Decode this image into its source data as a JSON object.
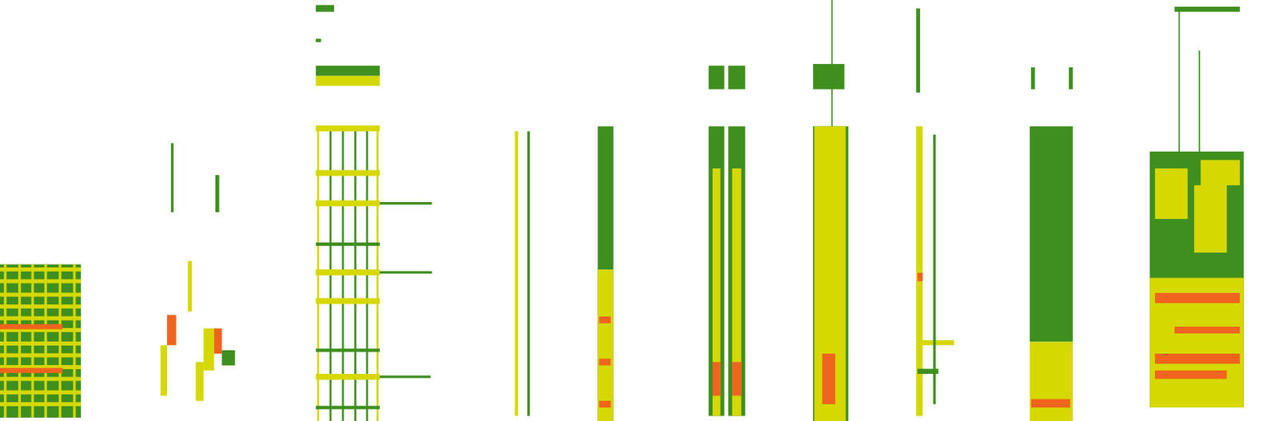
{
  "chart_data": {
    "type": "spectrogram",
    "xlim": [
      0,
      98
    ],
    "ylim": [
      0,
      25
    ],
    "tick_labels": false,
    "grid": false,
    "levels": [
      1,
      2,
      3
    ],
    "colors": [
      "#3f8f1f",
      "#d6d800",
      "#f0641e"
    ],
    "cells": [
      {
        "x": [
          0,
          6.2
        ],
        "y": [
          0.2,
          9.3
        ],
        "level": 1
      },
      {
        "x": [
          0,
          6.2
        ],
        "y": [
          8.88,
          9.12
        ],
        "level": 2
      },
      {
        "x": [
          0,
          6.2
        ],
        "y": [
          8.18,
          8.42
        ],
        "level": 2
      },
      {
        "x": [
          0,
          6.2
        ],
        "y": [
          7.38,
          7.62
        ],
        "level": 2
      },
      {
        "x": [
          0,
          6.2
        ],
        "y": [
          6.68,
          6.92
        ],
        "level": 2
      },
      {
        "x": [
          0,
          6.2
        ],
        "y": [
          5.98,
          6.22
        ],
        "level": 2
      },
      {
        "x": [
          0,
          6.2
        ],
        "y": [
          5.28,
          5.52
        ],
        "level": 2
      },
      {
        "x": [
          0,
          6.2
        ],
        "y": [
          4.48,
          4.72
        ],
        "level": 2
      },
      {
        "x": [
          0,
          6.2
        ],
        "y": [
          3.78,
          4.02
        ],
        "level": 2
      },
      {
        "x": [
          0,
          6.2
        ],
        "y": [
          3.08,
          3.32
        ],
        "level": 2
      },
      {
        "x": [
          0,
          6.2
        ],
        "y": [
          2.38,
          2.62
        ],
        "level": 2
      },
      {
        "x": [
          0,
          6.2
        ],
        "y": [
          1.58,
          1.82
        ],
        "level": 2
      },
      {
        "x": [
          0,
          6.2
        ],
        "y": [
          0.88,
          1.12
        ],
        "level": 2
      },
      {
        "x": [
          0.3,
          0.5
        ],
        "y": [
          0.2,
          9.3
        ],
        "level": 2
      },
      {
        "x": [
          1.4,
          1.6
        ],
        "y": [
          0.2,
          9.3
        ],
        "level": 2
      },
      {
        "x": [
          2.4,
          2.6
        ],
        "y": [
          0.2,
          9.3
        ],
        "level": 2
      },
      {
        "x": [
          3.4,
          3.6
        ],
        "y": [
          0.2,
          9.3
        ],
        "level": 2
      },
      {
        "x": [
          4.5,
          4.7
        ],
        "y": [
          0.2,
          9.3
        ],
        "level": 2
      },
      {
        "x": [
          5.6,
          5.8
        ],
        "y": [
          0.2,
          9.3
        ],
        "level": 2
      },
      {
        "x": [
          0,
          4.8
        ],
        "y": [
          5.45,
          5.75
        ],
        "level": 3
      },
      {
        "x": [
          0,
          4.8
        ],
        "y": [
          2.85,
          3.15
        ],
        "level": 3
      },
      {
        "x": [
          12.3,
          12.8
        ],
        "y": [
          1.5,
          4.5
        ],
        "level": 2
      },
      {
        "x": [
          12.8,
          13.5
        ],
        "y": [
          4.5,
          6.3
        ],
        "level": 3
      },
      {
        "x": [
          14.4,
          14.7
        ],
        "y": [
          6.5,
          9.5
        ],
        "level": 2
      },
      {
        "x": [
          15,
          15.6
        ],
        "y": [
          1.2,
          3.5
        ],
        "level": 2
      },
      {
        "x": [
          15.6,
          16.4
        ],
        "y": [
          3,
          5.5
        ],
        "level": 2
      },
      {
        "x": [
          16.4,
          17
        ],
        "y": [
          4,
          5.5
        ],
        "level": 3
      },
      {
        "x": [
          17,
          18
        ],
        "y": [
          3.3,
          4.2
        ],
        "level": 1
      },
      {
        "x": [
          16.5,
          16.8
        ],
        "y": [
          12.4,
          14.6
        ],
        "level": 1
      },
      {
        "x": [
          13.1,
          13.3
        ],
        "y": [
          12.4,
          16.5
        ],
        "level": 1
      },
      {
        "x": [
          24.3,
          24.45
        ],
        "y": [
          0,
          17.5
        ],
        "level": 2
      },
      {
        "x": [
          25.25,
          25.4
        ],
        "y": [
          0,
          17.5
        ],
        "level": 1
      },
      {
        "x": [
          26.2,
          26.35
        ],
        "y": [
          0,
          17.5
        ],
        "level": 1
      },
      {
        "x": [
          27.15,
          27.3
        ],
        "y": [
          0,
          17.5
        ],
        "level": 1
      },
      {
        "x": [
          28.05,
          28.2
        ],
        "y": [
          0,
          17.5
        ],
        "level": 1
      },
      {
        "x": [
          28.85,
          29.0
        ],
        "y": [
          0,
          17.5
        ],
        "level": 2
      },
      {
        "x": [
          24.2,
          29.1
        ],
        "y": [
          17.2,
          17.55
        ],
        "level": 2
      },
      {
        "x": [
          24.2,
          29.1
        ],
        "y": [
          14.55,
          14.9
        ],
        "level": 2
      },
      {
        "x": [
          24.2,
          29.1
        ],
        "y": [
          12.75,
          13.1
        ],
        "level": 2
      },
      {
        "x": [
          24.2,
          29.1
        ],
        "y": [
          10.4,
          10.6
        ],
        "level": 1
      },
      {
        "x": [
          24.2,
          29.1
        ],
        "y": [
          8.65,
          9.0
        ],
        "level": 2
      },
      {
        "x": [
          24.2,
          29.1
        ],
        "y": [
          6.95,
          7.3
        ],
        "level": 2
      },
      {
        "x": [
          24.2,
          29.1
        ],
        "y": [
          4.1,
          4.3
        ],
        "level": 1
      },
      {
        "x": [
          24.2,
          29.1
        ],
        "y": [
          2.45,
          2.8
        ],
        "level": 2
      },
      {
        "x": [
          24.2,
          29.1
        ],
        "y": [
          0.7,
          0.9
        ],
        "level": 1
      },
      {
        "x": [
          29.1,
          33.1
        ],
        "y": [
          12.85,
          13.0
        ],
        "level": 1
      },
      {
        "x": [
          29.1,
          33.1
        ],
        "y": [
          8.75,
          8.9
        ],
        "level": 1
      },
      {
        "x": [
          29.1,
          33.0
        ],
        "y": [
          2.55,
          2.7
        ],
        "level": 1
      },
      {
        "x": [
          24.2,
          29.1
        ],
        "y": [
          19.9,
          20.5
        ],
        "level": 2
      },
      {
        "x": [
          24.2,
          29.1
        ],
        "y": [
          20.5,
          21.1
        ],
        "level": 1
      },
      {
        "x": [
          24.2,
          24.6
        ],
        "y": [
          22.5,
          22.7
        ],
        "level": 1
      },
      {
        "x": [
          24.2,
          25.6
        ],
        "y": [
          24.3,
          24.7
        ],
        "level": 1
      },
      {
        "x": [
          39.45,
          39.7
        ],
        "y": [
          0.3,
          17.2
        ],
        "level": 2
      },
      {
        "x": [
          40.4,
          40.6
        ],
        "y": [
          0.3,
          17.2
        ],
        "level": 1
      },
      {
        "x": [
          45.8,
          47
        ],
        "y": [
          0,
          17.5
        ],
        "level": 1
      },
      {
        "x": [
          45.8,
          47
        ],
        "y": [
          0,
          9
        ],
        "level": 2
      },
      {
        "x": [
          45.9,
          46.8
        ],
        "y": [
          0.8,
          1.2
        ],
        "level": 3
      },
      {
        "x": [
          45.9,
          46.8
        ],
        "y": [
          3.3,
          3.7
        ],
        "level": 3
      },
      {
        "x": [
          45.9,
          46.8
        ],
        "y": [
          5.8,
          6.2
        ],
        "level": 3
      },
      {
        "x": [
          54.3,
          55.5
        ],
        "y": [
          0.3,
          17.5
        ],
        "level": 1
      },
      {
        "x": [
          55.8,
          57.1
        ],
        "y": [
          0.3,
          17.5
        ],
        "level": 1
      },
      {
        "x": [
          54.6,
          55.2
        ],
        "y": [
          0.3,
          15
        ],
        "level": 2
      },
      {
        "x": [
          56.1,
          56.8
        ],
        "y": [
          0.3,
          15
        ],
        "level": 2
      },
      {
        "x": [
          54.6,
          55.2
        ],
        "y": [
          1.5,
          3.5
        ],
        "level": 3
      },
      {
        "x": [
          56.1,
          56.8
        ],
        "y": [
          1.5,
          3.5
        ],
        "level": 3
      },
      {
        "x": [
          54.3,
          55.5
        ],
        "y": [
          19.7,
          21.1
        ],
        "level": 1
      },
      {
        "x": [
          55.8,
          57.1
        ],
        "y": [
          19.7,
          21.1
        ],
        "level": 1
      },
      {
        "x": [
          62.3,
          65.0
        ],
        "y": [
          0,
          17.5
        ],
        "level": 1
      },
      {
        "x": [
          62.4,
          64.8
        ],
        "y": [
          0,
          17.5
        ],
        "level": 2
      },
      {
        "x": [
          63,
          64
        ],
        "y": [
          1,
          4
        ],
        "level": 3
      },
      {
        "x": [
          62.3,
          64.7
        ],
        "y": [
          19.7,
          21.2
        ],
        "level": 1
      },
      {
        "x": [
          63.7,
          63.8
        ],
        "y": [
          17.5,
          25
        ],
        "level": 1
      },
      {
        "x": [
          70.2,
          70.7
        ],
        "y": [
          0.3,
          17.5
        ],
        "level": 2
      },
      {
        "x": [
          70.2,
          70.5
        ],
        "y": [
          19.5,
          24.5
        ],
        "level": 1
      },
      {
        "x": [
          70.3,
          70.7
        ],
        "y": [
          8.3,
          8.8
        ],
        "level": 3
      },
      {
        "x": [
          70.3,
          73.1
        ],
        "y": [
          4.5,
          4.8
        ],
        "level": 2
      },
      {
        "x": [
          70.3,
          71.9
        ],
        "y": [
          2.8,
          3.1
        ],
        "level": 1
      },
      {
        "x": [
          71.5,
          71.7
        ],
        "y": [
          1,
          17
        ],
        "level": 1
      },
      {
        "x": [
          78.9,
          82.2
        ],
        "y": [
          4.7,
          17.5
        ],
        "level": 1
      },
      {
        "x": [
          78.9,
          82.2
        ],
        "y": [
          0,
          4.7
        ],
        "level": 2
      },
      {
        "x": [
          79,
          82
        ],
        "y": [
          0.8,
          1.3
        ],
        "level": 3
      },
      {
        "x": [
          79,
          79.3
        ],
        "y": [
          19.7,
          21
        ],
        "level": 1
      },
      {
        "x": [
          81.9,
          82.2
        ],
        "y": [
          19.7,
          21
        ],
        "level": 1
      },
      {
        "x": [
          88.1,
          95.3
        ],
        "y": [
          0.8,
          16.0
        ],
        "level": 1
      },
      {
        "x": [
          88.5,
          91
        ],
        "y": [
          12,
          15
        ],
        "level": 2
      },
      {
        "x": [
          91.5,
          94
        ],
        "y": [
          10,
          14
        ],
        "level": 2
      },
      {
        "x": [
          92,
          95
        ],
        "y": [
          14,
          15.5
        ],
        "level": 2
      },
      {
        "x": [
          88.1,
          95.3
        ],
        "y": [
          0.8,
          8.5
        ],
        "level": 2
      },
      {
        "x": [
          88.5,
          95
        ],
        "y": [
          7.0,
          7.6
        ],
        "level": 3
      },
      {
        "x": [
          88.5,
          95
        ],
        "y": [
          3.4,
          4.0
        ],
        "level": 3
      },
      {
        "x": [
          88.5,
          94
        ],
        "y": [
          2.5,
          3.0
        ],
        "level": 3
      },
      {
        "x": [
          90,
          95
        ],
        "y": [
          5.2,
          5.6
        ],
        "level": 3
      },
      {
        "x": [
          90.3,
          90.4
        ],
        "y": [
          16,
          24.5
        ],
        "level": 1
      },
      {
        "x": [
          91.85,
          91.95
        ],
        "y": [
          16,
          22
        ],
        "level": 1
      },
      {
        "x": [
          90,
          95
        ],
        "y": [
          24.3,
          24.6
        ],
        "level": 1
      }
    ]
  }
}
